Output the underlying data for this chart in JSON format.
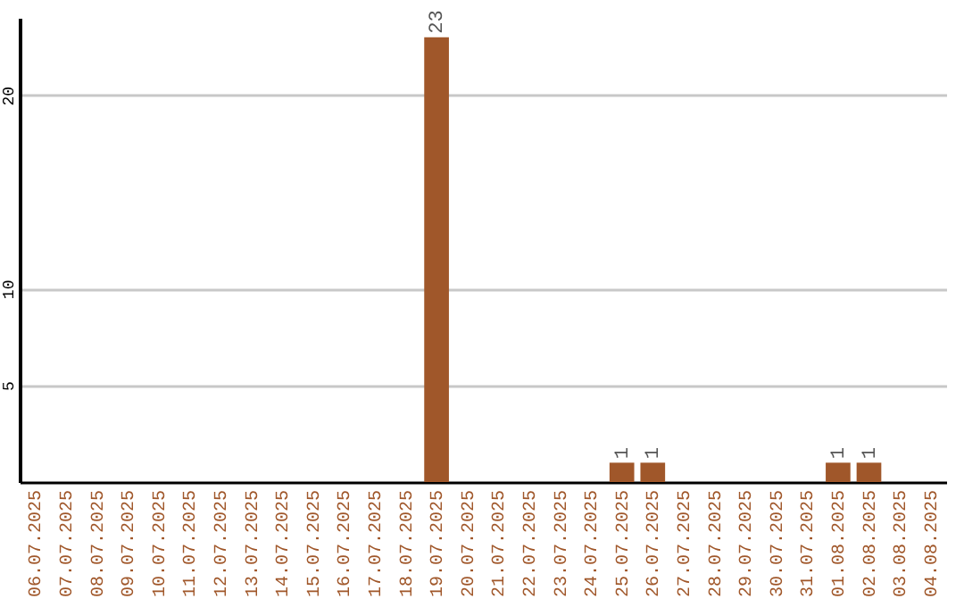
{
  "chart_data": {
    "type": "bar",
    "categories": [
      "06.07.2025",
      "07.07.2025",
      "08.07.2025",
      "09.07.2025",
      "10.07.2025",
      "11.07.2025",
      "12.07.2025",
      "13.07.2025",
      "14.07.2025",
      "15.07.2025",
      "16.07.2025",
      "17.07.2025",
      "18.07.2025",
      "19.07.2025",
      "20.07.2025",
      "21.07.2025",
      "22.07.2025",
      "23.07.2025",
      "24.07.2025",
      "25.07.2025",
      "26.07.2025",
      "27.07.2025",
      "28.07.2025",
      "29.07.2025",
      "30.07.2025",
      "31.07.2025",
      "01.08.2025",
      "02.08.2025",
      "03.08.2025",
      "04.08.2025"
    ],
    "values": [
      0,
      0,
      0,
      0,
      0,
      0,
      0,
      0,
      0,
      0,
      0,
      0,
      0,
      23,
      0,
      0,
      0,
      0,
      0,
      1,
      1,
      0,
      0,
      0,
      0,
      0,
      1,
      1,
      0,
      0
    ],
    "value_labels": [
      null,
      null,
      null,
      null,
      null,
      null,
      null,
      null,
      null,
      null,
      null,
      null,
      null,
      "23",
      null,
      null,
      null,
      null,
      null,
      "1",
      "1",
      null,
      null,
      null,
      null,
      null,
      "1",
      "1",
      null,
      null
    ],
    "color": "#a0572a",
    "ylim": [
      0,
      24
    ],
    "yticks": [
      5,
      10,
      20
    ],
    "grid": "y"
  }
}
